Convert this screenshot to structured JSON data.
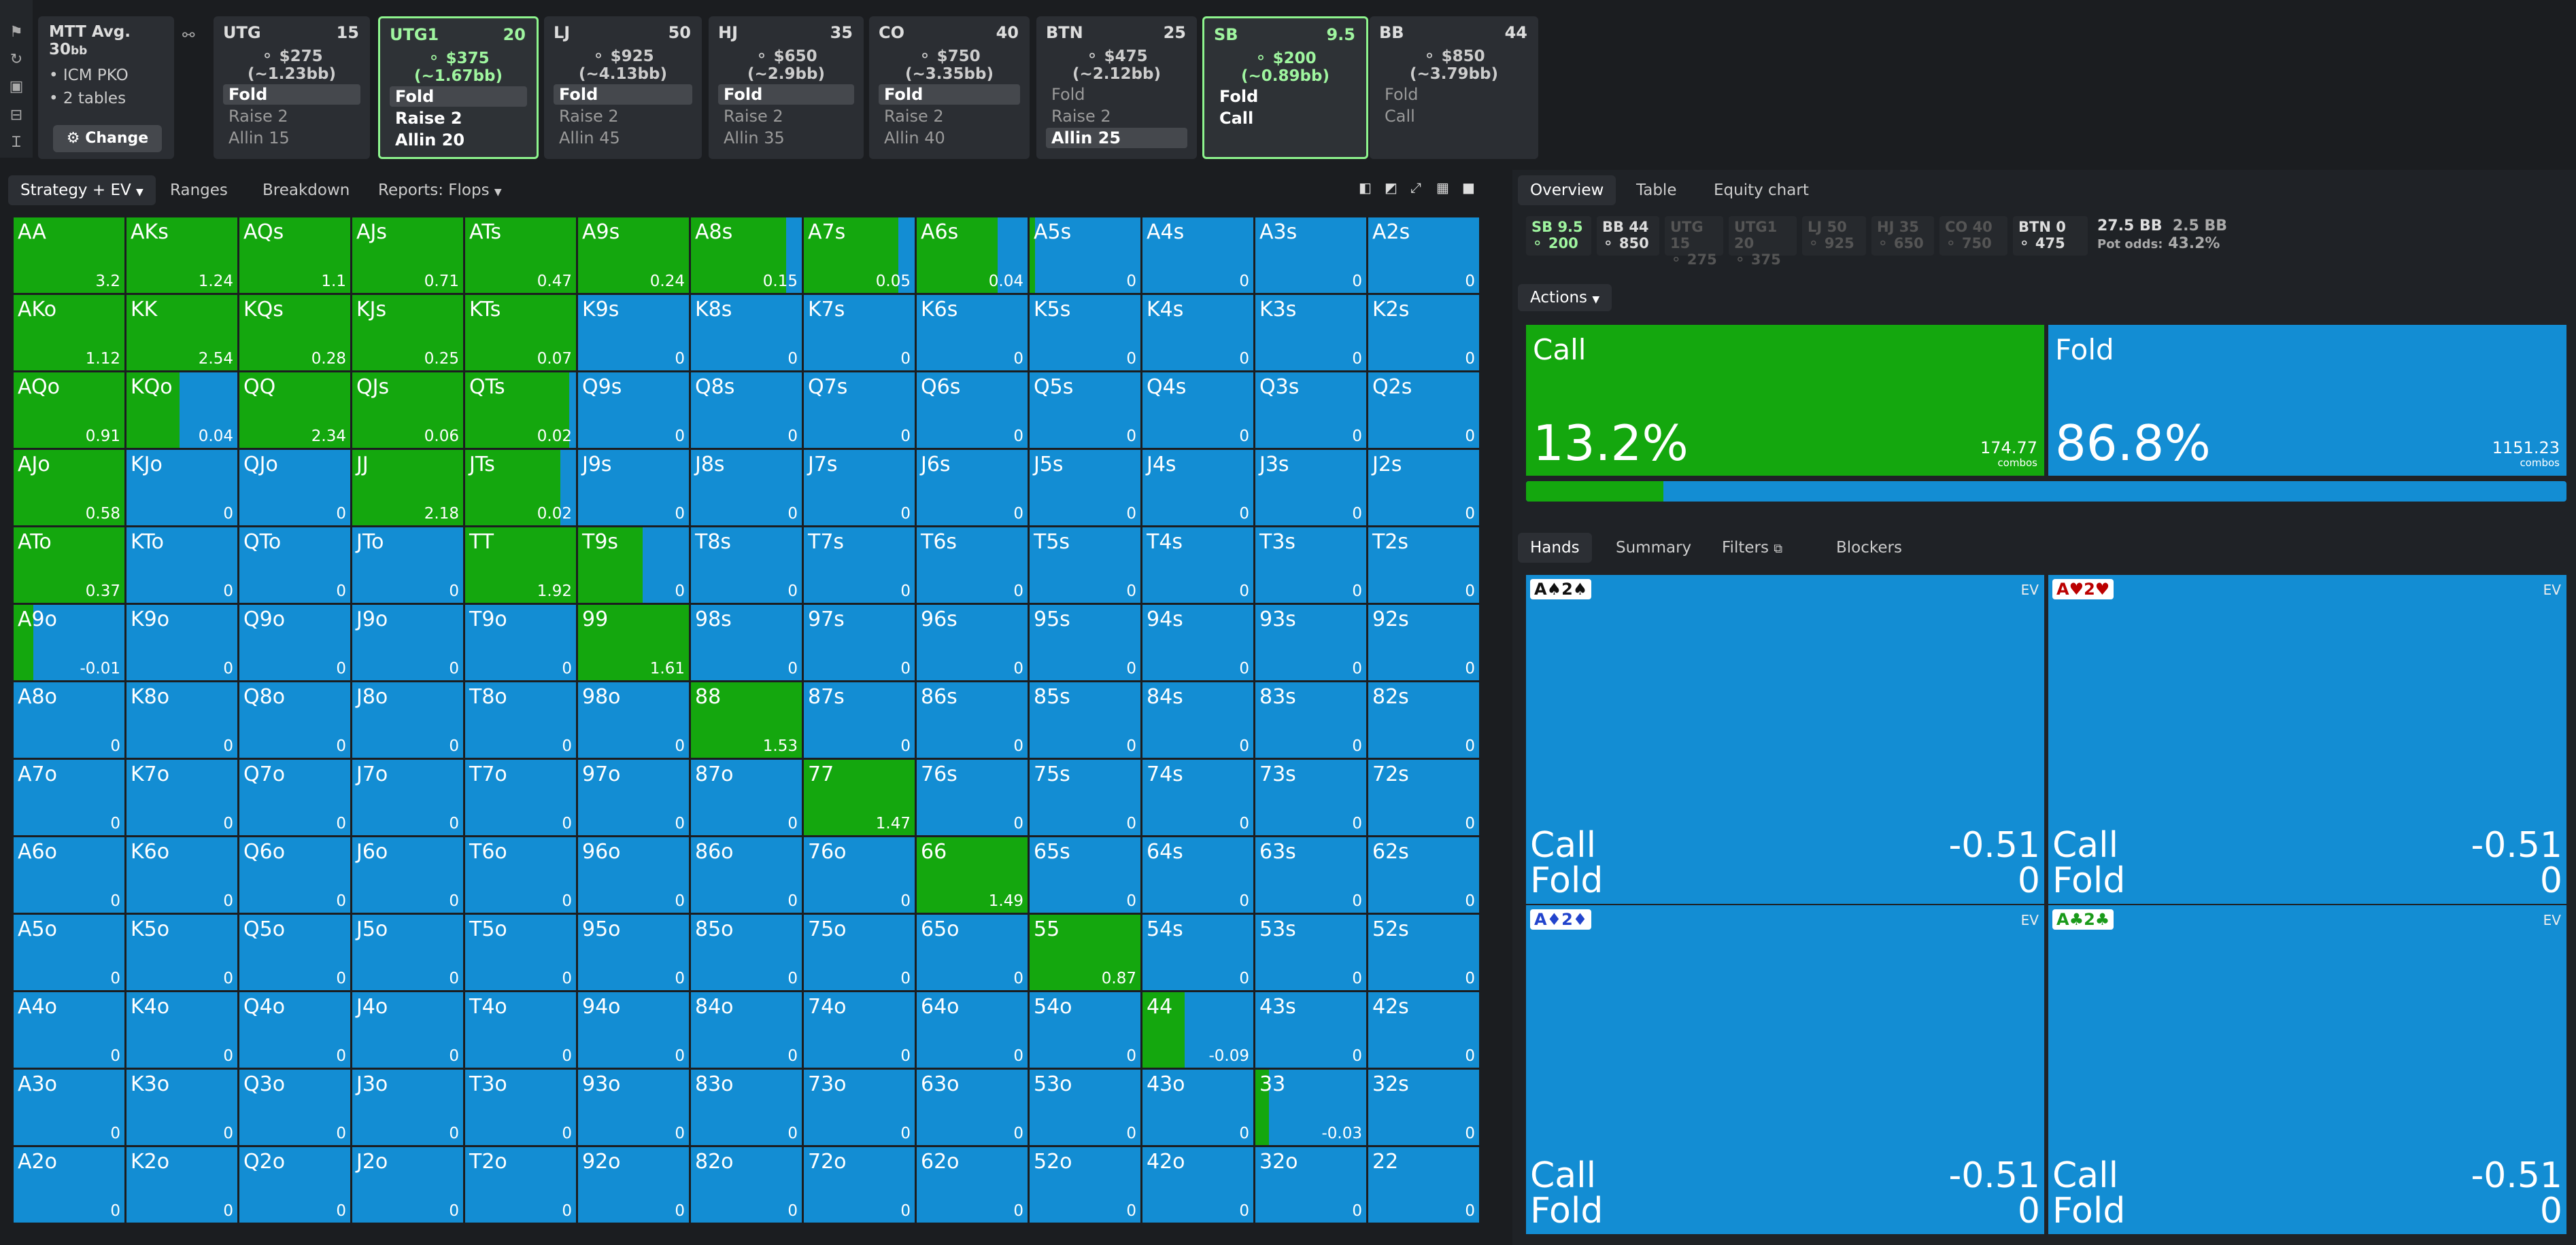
{
  "tournament": {
    "format": "MTT",
    "avg_label": "Avg. 30",
    "avg_unit": "bb",
    "info1": "ICM PKO",
    "info2": "2 tables",
    "change_label": "Change"
  },
  "players": [
    {
      "pos": "UTG",
      "stack": "15",
      "amount": "$275 (~1.23bb)",
      "actions": [
        "Fold",
        "Raise 2",
        "Allin 15"
      ],
      "selected": 0,
      "active": false
    },
    {
      "pos": "UTG1",
      "stack": "20",
      "amount": "$375 (~1.67bb)",
      "actions": [
        "Fold",
        "Raise 2",
        "Allin 20"
      ],
      "selected": 0,
      "active": true
    },
    {
      "pos": "LJ",
      "stack": "50",
      "amount": "$925 (~4.13bb)",
      "actions": [
        "Fold",
        "Raise 2",
        "Allin 45"
      ],
      "selected": 0,
      "active": false
    },
    {
      "pos": "HJ",
      "stack": "35",
      "amount": "$650 (~2.9bb)",
      "actions": [
        "Fold",
        "Raise 2",
        "Allin 35"
      ],
      "selected": 0,
      "active": false
    },
    {
      "pos": "CO",
      "stack": "40",
      "amount": "$750 (~3.35bb)",
      "actions": [
        "Fold",
        "Raise 2",
        "Allin 40"
      ],
      "selected": 0,
      "active": false
    },
    {
      "pos": "BTN",
      "stack": "25",
      "amount": "$475 (~2.12bb)",
      "actions": [
        "Fold",
        "Raise 2",
        "Allin 25"
      ],
      "selected": 2,
      "active": false
    },
    {
      "pos": "SB",
      "stack": "9.5",
      "amount": "$200 (~0.89bb)",
      "actions": [
        "Fold",
        "Call"
      ],
      "selected": -1,
      "active": true
    },
    {
      "pos": "BB",
      "stack": "44",
      "amount": "$850 (~3.79bb)",
      "actions": [
        "Fold",
        "Call"
      ],
      "selected": -1,
      "active": false
    }
  ],
  "left_tabs": {
    "strategy": "Strategy + EV",
    "ranges": "Ranges",
    "breakdown": "Breakdown",
    "reports": "Reports: Flops"
  },
  "right_tabs": {
    "overview": "Overview",
    "table": "Table",
    "equity": "Equity chart"
  },
  "overview_chips": [
    {
      "l1": "SB 9.5",
      "l2": "200",
      "cls": "sb"
    },
    {
      "l1": "BB 44",
      "l2": "850",
      "cls": ""
    },
    {
      "l1": "UTG 15",
      "l2": "275",
      "cls": "dim"
    },
    {
      "l1": "UTG1 20",
      "l2": "375",
      "cls": "dim"
    },
    {
      "l1": "LJ 50",
      "l2": "925",
      "cls": "dim"
    },
    {
      "l1": "HJ 35",
      "l2": "650",
      "cls": "dim"
    },
    {
      "l1": "CO 40",
      "l2": "750",
      "cls": "dim"
    },
    {
      "l1": "BTN 0",
      "l2": "475",
      "cls": ""
    }
  ],
  "pot": {
    "total": "27.5 BB",
    "call": "2.5 BB",
    "odds_label": "Pot odds:",
    "odds": "43.2%"
  },
  "actions_label": "Actions",
  "actions": [
    {
      "name": "Call",
      "pct": "13.2%",
      "combos": "174.77",
      "combos_label": "combos",
      "color": "#14a70e",
      "frac": 0.132
    },
    {
      "name": "Fold",
      "pct": "86.8%",
      "combos": "1151.23",
      "combos_label": "combos",
      "color": "#138dd3",
      "frac": 0.868
    }
  ],
  "hand_tabs": {
    "hands": "Hands",
    "summary": "Summary",
    "filters": "Filters",
    "blockers": "Blockers"
  },
  "hand_boxes": [
    {
      "cards": "A♠2♠",
      "color": "#111",
      "ev": "EV",
      "call": "Call",
      "call_v": "-0.51",
      "fold": "Fold",
      "fold_v": "0"
    },
    {
      "cards": "A♥2♥",
      "color": "#b00",
      "ev": "EV",
      "call": "Call",
      "call_v": "-0.51",
      "fold": "Fold",
      "fold_v": "0"
    },
    {
      "cards": "A♦2♦",
      "color": "#2244cc",
      "ev": "EV",
      "call": "Call",
      "call_v": "-0.51",
      "fold": "Fold",
      "fold_v": "0"
    },
    {
      "cards": "A♣2♣",
      "color": "#1a9a1a",
      "ev": "EV",
      "call": "Call",
      "call_v": "-0.51",
      "fold": "Fold",
      "fold_v": "0"
    }
  ],
  "grid": {
    "hands": [
      [
        "AA",
        "AKs",
        "AQs",
        "AJs",
        "ATs",
        "A9s",
        "A8s",
        "A7s",
        "A6s",
        "A5s",
        "A4s",
        "A3s",
        "A2s"
      ],
      [
        "AKo",
        "KK",
        "KQs",
        "KJs",
        "KTs",
        "K9s",
        "K8s",
        "K7s",
        "K6s",
        "K5s",
        "K4s",
        "K3s",
        "K2s"
      ],
      [
        "AQo",
        "KQo",
        "QQ",
        "QJs",
        "QTs",
        "Q9s",
        "Q8s",
        "Q7s",
        "Q6s",
        "Q5s",
        "Q4s",
        "Q3s",
        "Q2s"
      ],
      [
        "AJo",
        "KJo",
        "QJo",
        "JJ",
        "JTs",
        "J9s",
        "J8s",
        "J7s",
        "J6s",
        "J5s",
        "J4s",
        "J3s",
        "J2s"
      ],
      [
        "ATo",
        "KTo",
        "QTo",
        "JTo",
        "TT",
        "T9s",
        "T8s",
        "T7s",
        "T6s",
        "T5s",
        "T4s",
        "T3s",
        "T2s"
      ],
      [
        "A9o",
        "K9o",
        "Q9o",
        "J9o",
        "T9o",
        "99",
        "98s",
        "97s",
        "96s",
        "95s",
        "94s",
        "93s",
        "92s"
      ],
      [
        "A8o",
        "K8o",
        "Q8o",
        "J8o",
        "T8o",
        "98o",
        "88",
        "87s",
        "86s",
        "85s",
        "84s",
        "83s",
        "82s"
      ],
      [
        "A7o",
        "K7o",
        "Q7o",
        "J7o",
        "T7o",
        "97o",
        "87o",
        "77",
        "76s",
        "75s",
        "74s",
        "73s",
        "72s"
      ],
      [
        "A6o",
        "K6o",
        "Q6o",
        "J6o",
        "T6o",
        "96o",
        "86o",
        "76o",
        "66",
        "65s",
        "64s",
        "63s",
        "62s"
      ],
      [
        "A5o",
        "K5o",
        "Q5o",
        "J5o",
        "T5o",
        "95o",
        "85o",
        "75o",
        "65o",
        "55",
        "54s",
        "53s",
        "52s"
      ],
      [
        "A4o",
        "K4o",
        "Q4o",
        "J4o",
        "T4o",
        "94o",
        "84o",
        "74o",
        "64o",
        "54o",
        "44",
        "43s",
        "42s"
      ],
      [
        "A3o",
        "K3o",
        "Q3o",
        "J3o",
        "T3o",
        "93o",
        "83o",
        "73o",
        "63o",
        "53o",
        "43o",
        "33",
        "32s"
      ],
      [
        "A2o",
        "K2o",
        "Q2o",
        "J2o",
        "T2o",
        "92o",
        "82o",
        "72o",
        "62o",
        "52o",
        "42o",
        "32o",
        "22"
      ]
    ],
    "ev": [
      [
        "3.2",
        "1.24",
        "1.1",
        "0.71",
        "0.47",
        "0.24",
        "0.15",
        "0.05",
        "0.04",
        "0",
        "0",
        "0",
        "0"
      ],
      [
        "1.12",
        "2.54",
        "0.28",
        "0.25",
        "0.07",
        "0",
        "0",
        "0",
        "0",
        "0",
        "0",
        "0",
        "0"
      ],
      [
        "0.91",
        "0.04",
        "2.34",
        "0.06",
        "0.02",
        "0",
        "0",
        "0",
        "0",
        "0",
        "0",
        "0",
        "0"
      ],
      [
        "0.58",
        "0",
        "0",
        "2.18",
        "0.02",
        "0",
        "0",
        "0",
        "0",
        "0",
        "0",
        "0",
        "0"
      ],
      [
        "0.37",
        "0",
        "0",
        "0",
        "1.92",
        "0",
        "0",
        "0",
        "0",
        "0",
        "0",
        "0",
        "0"
      ],
      [
        "-0.01",
        "0",
        "0",
        "0",
        "0",
        "1.61",
        "0",
        "0",
        "0",
        "0",
        "0",
        "0",
        "0"
      ],
      [
        "0",
        "0",
        "0",
        "0",
        "0",
        "0",
        "1.53",
        "0",
        "0",
        "0",
        "0",
        "0",
        "0"
      ],
      [
        "0",
        "0",
        "0",
        "0",
        "0",
        "0",
        "0",
        "1.47",
        "0",
        "0",
        "0",
        "0",
        "0"
      ],
      [
        "0",
        "0",
        "0",
        "0",
        "0",
        "0",
        "0",
        "0",
        "1.49",
        "0",
        "0",
        "0",
        "0"
      ],
      [
        "0",
        "0",
        "0",
        "0",
        "0",
        "0",
        "0",
        "0",
        "0",
        "0.87",
        "0",
        "0",
        "0"
      ],
      [
        "0",
        "0",
        "0",
        "0",
        "0",
        "0",
        "0",
        "0",
        "0",
        "0",
        "-0.09",
        "0",
        "0"
      ],
      [
        "0",
        "0",
        "0",
        "0",
        "0",
        "0",
        "0",
        "0",
        "0",
        "0",
        "0",
        "-0.03",
        "0"
      ],
      [
        "0",
        "0",
        "0",
        "0",
        "0",
        "0",
        "0",
        "0",
        "0",
        "0",
        "0",
        "0",
        "0"
      ]
    ],
    "call_freq": [
      [
        1,
        1,
        1,
        1,
        1,
        1,
        0.86,
        0.85,
        0.73,
        0.05,
        0,
        0,
        0
      ],
      [
        1,
        1,
        1,
        1,
        1,
        0,
        0,
        0,
        0,
        0,
        0,
        0,
        0
      ],
      [
        1,
        0.48,
        1,
        1,
        0.94,
        0,
        0,
        0,
        0,
        0,
        0,
        0,
        0
      ],
      [
        1,
        0,
        0,
        1,
        0.86,
        0,
        0,
        0,
        0,
        0,
        0,
        0,
        0
      ],
      [
        1,
        0,
        0,
        0,
        1,
        0.58,
        0,
        0,
        0,
        0,
        0,
        0,
        0
      ],
      [
        0.18,
        0,
        0,
        0,
        0,
        1,
        0,
        0,
        0,
        0,
        0,
        0,
        0
      ],
      [
        0,
        0,
        0,
        0,
        0,
        0,
        1,
        0,
        0,
        0,
        0,
        0,
        0
      ],
      [
        0,
        0,
        0,
        0,
        0,
        0,
        0,
        1,
        0,
        0,
        0,
        0,
        0
      ],
      [
        0,
        0,
        0,
        0,
        0,
        0,
        0,
        0,
        1,
        0,
        0,
        0,
        0
      ],
      [
        0,
        0,
        0,
        0,
        0,
        0,
        0,
        0,
        0,
        1,
        0,
        0,
        0
      ],
      [
        0,
        0,
        0,
        0,
        0,
        0,
        0,
        0,
        0,
        0,
        0.38,
        0,
        0
      ],
      [
        0,
        0,
        0,
        0,
        0,
        0,
        0,
        0,
        0,
        0,
        0,
        0.12,
        0
      ],
      [
        0,
        0,
        0,
        0,
        0,
        0,
        0,
        0,
        0,
        0,
        0,
        0,
        0
      ]
    ]
  }
}
